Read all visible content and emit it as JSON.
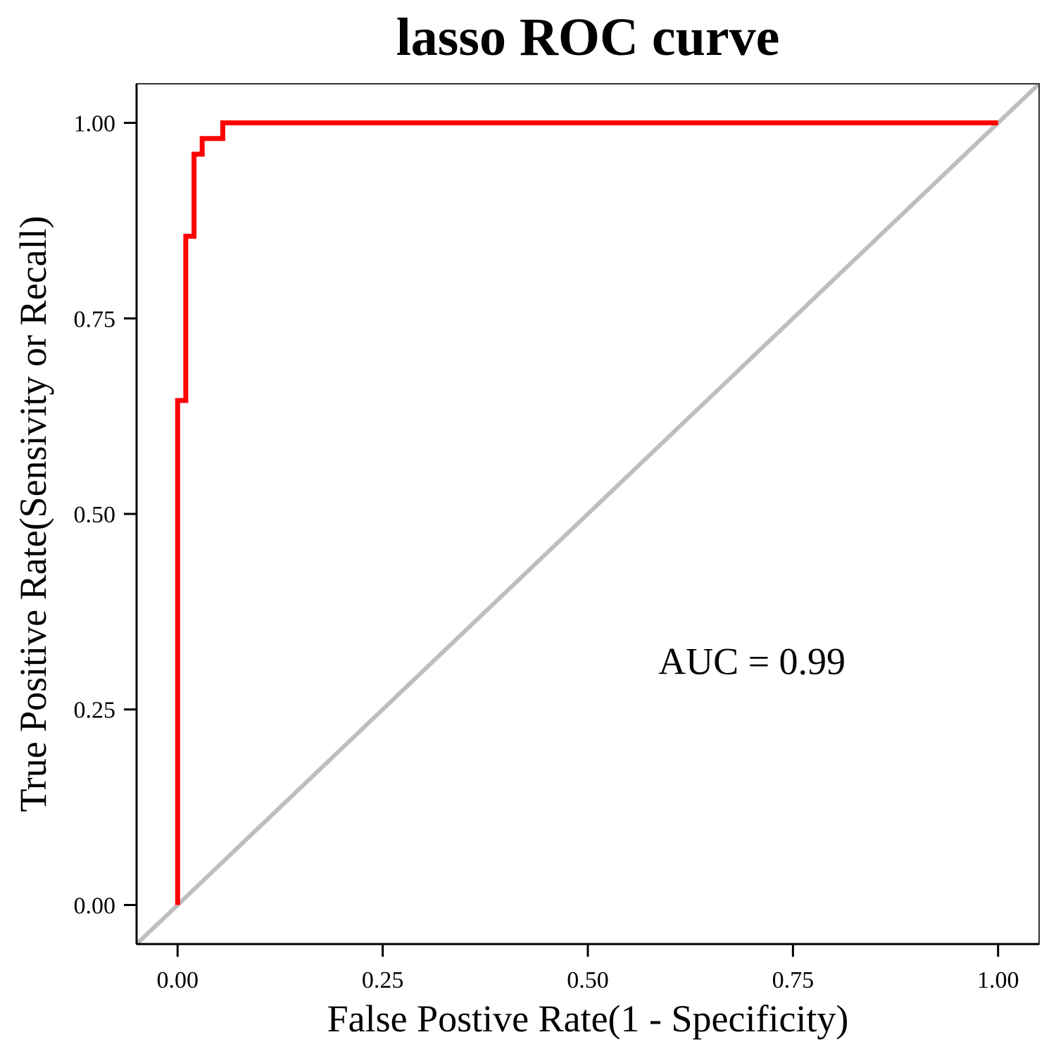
{
  "chart_data": {
    "type": "line",
    "title": "lasso ROC curve",
    "xlabel": "False Postive Rate(1 - Specificity)",
    "ylabel": "True Positive Rate(Sensivity or Recall)",
    "xlim": [
      -0.05,
      1.05
    ],
    "ylim": [
      -0.05,
      1.05
    ],
    "xticks": [
      0,
      0.25,
      0.5,
      0.75,
      1
    ],
    "yticks": [
      0,
      0.25,
      0.5,
      0.75,
      1
    ],
    "xtick_labels": [
      "0.00",
      "0.25",
      "0.50",
      "0.75",
      "1.00"
    ],
    "ytick_labels": [
      "0.00",
      "0.25",
      "0.50",
      "0.75",
      "1.00"
    ],
    "grid": false,
    "series": [
      {
        "color": "#ff0000",
        "x": [
          0,
          0,
          0.01,
          0.01,
          0.02,
          0.02,
          0.03,
          0.03,
          0.055,
          0.055,
          1.0
        ],
        "y": [
          0,
          0.645,
          0.645,
          0.855,
          0.855,
          0.96,
          0.96,
          0.98,
          0.98,
          1.0,
          1.0
        ]
      }
    ],
    "reference_line": {
      "color": "#bebebe",
      "x": [
        -0.05,
        1.05
      ],
      "y": [
        -0.05,
        1.05
      ]
    },
    "annotations": [
      {
        "text": "AUC = 0.99",
        "x": 0.7,
        "y": 0.295
      }
    ]
  }
}
